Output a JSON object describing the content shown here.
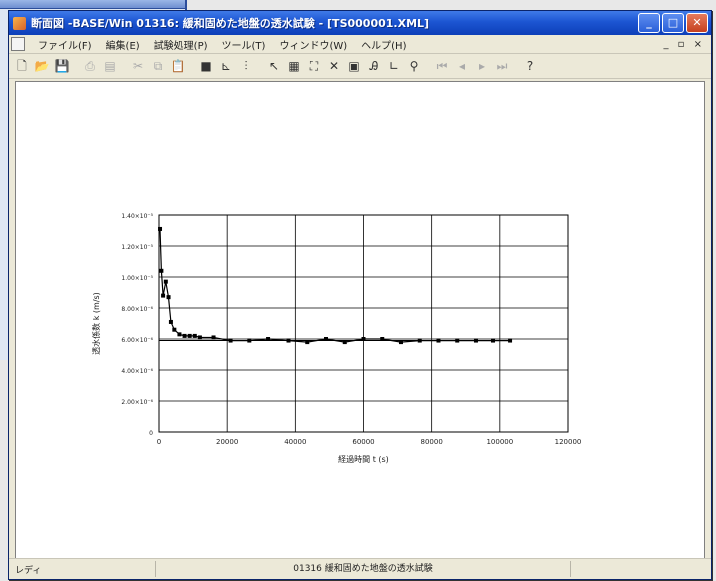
{
  "window": {
    "title": "断面図 -BASE/Win 01316: 緩和固めた地盤の透水試験 - [TS000001.XML]",
    "min": "_",
    "max": "□",
    "close": "✕"
  },
  "menu": {
    "items": [
      "ファイル(F)",
      "編集(E)",
      "試験処理(P)",
      "ツール(T)",
      "ウィンドウ(W)",
      "ヘルプ(H)"
    ],
    "mdi_controls": "_ ▫ ×"
  },
  "toolbar": {
    "icons": [
      "new-icon",
      "open-icon",
      "save-icon",
      "sep",
      "print-icon",
      "preview-icon",
      "sep",
      "cut-icon",
      "copy-icon",
      "paste-icon",
      "sep",
      "stop-icon",
      "graph-icon",
      "chart-icon",
      "sep",
      "pointer-icon",
      "grid-icon",
      "fit-icon",
      "delete-icon",
      "record-icon",
      "table-icon",
      "axis-icon",
      "zoom-icon",
      "sep",
      "first-icon",
      "prev-icon",
      "next-icon",
      "last-icon",
      "sep",
      "help-icon"
    ],
    "glyphs": {
      "new-icon": "🗋",
      "open-icon": "📂",
      "save-icon": "💾",
      "print-icon": "⎙",
      "preview-icon": "▤",
      "cut-icon": "✂",
      "copy-icon": "⧉",
      "paste-icon": "📋",
      "stop-icon": "■",
      "graph-icon": "⊾",
      "chart-icon": "⫶",
      "pointer-icon": "↖",
      "grid-icon": "▦",
      "fit-icon": "⛶",
      "delete-icon": "✕",
      "record-icon": "▣",
      "table-icon": "Ꭿ",
      "axis-icon": "∟",
      "zoom-icon": "⚲",
      "first-icon": "⏮",
      "prev-icon": "◂",
      "next-icon": "▸",
      "last-icon": "⏭",
      "help-icon": "?"
    },
    "disabled": [
      "print-icon",
      "preview-icon",
      "cut-icon",
      "copy-icon",
      "paste-icon",
      "first-icon",
      "prev-icon",
      "next-icon",
      "last-icon"
    ]
  },
  "chart_data": {
    "type": "scatter",
    "xlabel": "経過時間 t (s)",
    "ylabel": "透水係数 k (m/s)",
    "xlim": [
      0,
      120000
    ],
    "ylim": [
      0,
      14
    ],
    "x_ticks": [
      0,
      20000,
      40000,
      60000,
      80000,
      100000,
      120000
    ],
    "x_tick_labels": [
      "0",
      "20000",
      "40000",
      "60000",
      "80000",
      "100000",
      "120000"
    ],
    "y_ticks": [
      0,
      2,
      4,
      6,
      8,
      10,
      12,
      14
    ],
    "y_tick_labels": [
      "0",
      "2.00×10⁻⁶",
      "4.00×10⁻⁶",
      "6.00×10⁻⁶",
      "8.00×10⁻⁶",
      "1.00×10⁻⁵",
      "1.20×10⁻⁵",
      "1.40×10⁻⁵"
    ],
    "grid": true,
    "series": [
      {
        "x": [
          300,
          700,
          1200,
          2000,
          2800,
          3500,
          4500,
          6000,
          7500,
          9000,
          10500,
          12000,
          16000,
          21000,
          26500,
          32000,
          38000,
          43500,
          49000,
          54500,
          60000,
          65500,
          71000,
          76500,
          82000,
          87500,
          93000,
          98000,
          103000
        ],
        "y": [
          13.1,
          10.4,
          8.8,
          9.7,
          8.7,
          7.1,
          6.6,
          6.3,
          6.2,
          6.2,
          6.2,
          6.1,
          6.1,
          5.9,
          5.9,
          6.0,
          5.9,
          5.8,
          6.0,
          5.8,
          6.0,
          6.0,
          5.8,
          5.9,
          5.9,
          5.9,
          5.9,
          5.9,
          5.9
        ]
      }
    ],
    "reference_line": 5.9
  },
  "status": {
    "left": "レディ",
    "center": "01316 緩和固めた地盤の透水試験"
  }
}
